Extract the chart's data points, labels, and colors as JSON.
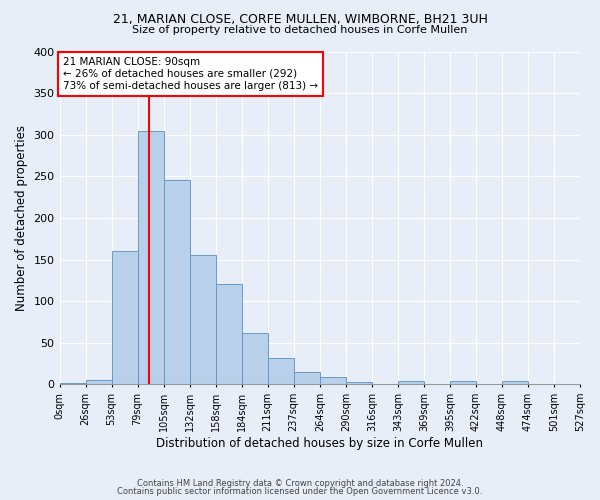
{
  "title1": "21, MARIAN CLOSE, CORFE MULLEN, WIMBORNE, BH21 3UH",
  "title2": "Size of property relative to detached houses in Corfe Mullen",
  "xlabel": "Distribution of detached houses by size in Corfe Mullen",
  "ylabel": "Number of detached properties",
  "footer1": "Contains HM Land Registry data © Crown copyright and database right 2024.",
  "footer2": "Contains public sector information licensed under the Open Government Licence v3.0.",
  "bin_labels": [
    "0sqm",
    "26sqm",
    "53sqm",
    "79sqm",
    "105sqm",
    "132sqm",
    "158sqm",
    "184sqm",
    "211sqm",
    "237sqm",
    "264sqm",
    "290sqm",
    "316sqm",
    "343sqm",
    "369sqm",
    "395sqm",
    "422sqm",
    "448sqm",
    "474sqm",
    "501sqm",
    "527sqm"
  ],
  "bar_values": [
    2,
    5,
    160,
    305,
    245,
    155,
    120,
    62,
    32,
    15,
    9,
    3,
    0,
    4,
    0,
    4,
    0,
    4,
    0,
    0
  ],
  "bar_color": "#b8d0ea",
  "bar_edge_color": "#6699cc",
  "annotation_text1": "21 MARIAN CLOSE: 90sqm",
  "annotation_text2": "← 26% of detached houses are smaller (292)",
  "annotation_text3": "73% of semi-detached houses are larger (813) →",
  "annotation_box_facecolor": "white",
  "annotation_box_edgecolor": "red",
  "vertical_line_color": "red",
  "bg_color": "#e8eef8",
  "grid_color": "white",
  "ylim": [
    0,
    400
  ],
  "yticks": [
    0,
    50,
    100,
    150,
    200,
    250,
    300,
    350,
    400
  ]
}
